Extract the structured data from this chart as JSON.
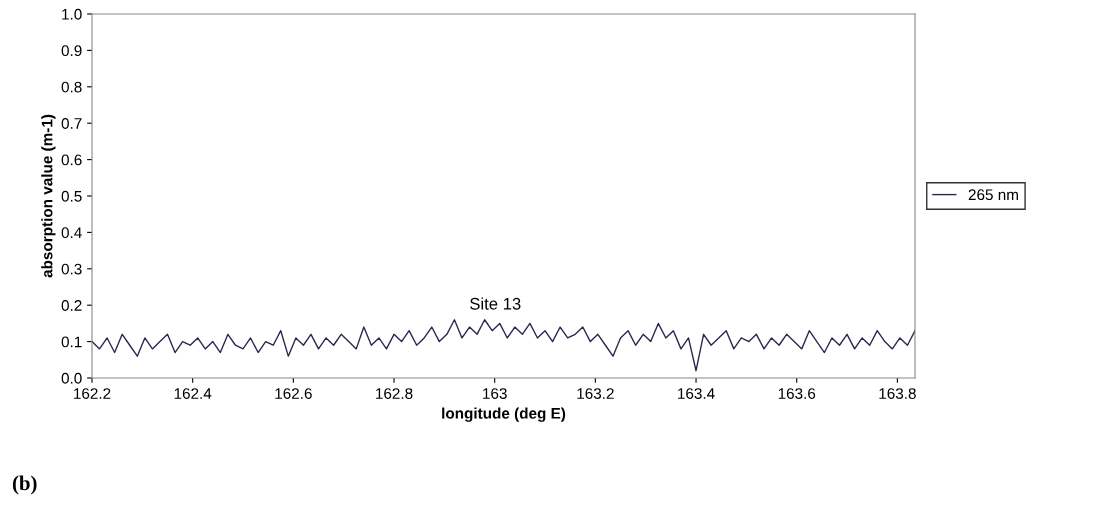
{
  "chart_data": {
    "type": "line",
    "xlabel": "longitude (deg E)",
    "ylabel": "absorption value (m-1)",
    "x": [
      162.2,
      162.215,
      162.23,
      162.245,
      162.26,
      162.275,
      162.29,
      162.305,
      162.32,
      162.335,
      162.35,
      162.365,
      162.38,
      162.395,
      162.41,
      162.425,
      162.44,
      162.455,
      162.47,
      162.485,
      162.5,
      162.515,
      162.53,
      162.545,
      162.56,
      162.575,
      162.59,
      162.605,
      162.62,
      162.635,
      162.65,
      162.665,
      162.68,
      162.695,
      162.71,
      162.725,
      162.74,
      162.755,
      162.77,
      162.785,
      162.8,
      162.815,
      162.83,
      162.845,
      162.86,
      162.875,
      162.89,
      162.905,
      162.92,
      162.935,
      162.95,
      162.965,
      162.98,
      162.995,
      163.01,
      163.025,
      163.04,
      163.055,
      163.07,
      163.085,
      163.1,
      163.115,
      163.13,
      163.145,
      163.16,
      163.175,
      163.19,
      163.205,
      163.22,
      163.235,
      163.25,
      163.265,
      163.28,
      163.295,
      163.31,
      163.325,
      163.34,
      163.355,
      163.37,
      163.385,
      163.4,
      163.415,
      163.43,
      163.445,
      163.46,
      163.475,
      163.49,
      163.505,
      163.52,
      163.535,
      163.55,
      163.565,
      163.58,
      163.595,
      163.61,
      163.625,
      163.64,
      163.655,
      163.67,
      163.685,
      163.7,
      163.715,
      163.73,
      163.745,
      163.76,
      163.775,
      163.79,
      163.805,
      163.82,
      163.835
    ],
    "series": [
      {
        "name": "265 nm",
        "color": "#2a2850",
        "values": [
          0.1,
          0.08,
          0.11,
          0.07,
          0.12,
          0.09,
          0.06,
          0.11,
          0.08,
          0.1,
          0.12,
          0.07,
          0.1,
          0.09,
          0.11,
          0.08,
          0.1,
          0.07,
          0.12,
          0.09,
          0.08,
          0.11,
          0.07,
          0.1,
          0.09,
          0.13,
          0.06,
          0.11,
          0.09,
          0.12,
          0.08,
          0.11,
          0.09,
          0.12,
          0.1,
          0.08,
          0.14,
          0.09,
          0.11,
          0.08,
          0.12,
          0.1,
          0.13,
          0.09,
          0.11,
          0.14,
          0.1,
          0.12,
          0.16,
          0.11,
          0.14,
          0.12,
          0.16,
          0.13,
          0.15,
          0.11,
          0.14,
          0.12,
          0.15,
          0.11,
          0.13,
          0.1,
          0.14,
          0.11,
          0.12,
          0.14,
          0.1,
          0.12,
          0.09,
          0.06,
          0.11,
          0.13,
          0.09,
          0.12,
          0.1,
          0.15,
          0.11,
          0.13,
          0.08,
          0.11,
          0.02,
          0.12,
          0.09,
          0.11,
          0.13,
          0.08,
          0.11,
          0.1,
          0.12,
          0.08,
          0.11,
          0.09,
          0.12,
          0.1,
          0.08,
          0.13,
          0.1,
          0.07,
          0.11,
          0.09,
          0.12,
          0.08,
          0.11,
          0.09,
          0.13,
          0.1,
          0.08,
          0.11,
          0.09,
          0.13
        ]
      }
    ],
    "xlim": [
      162.2,
      163.835
    ],
    "xticks": [
      162.2,
      162.4,
      162.6,
      162.8,
      163,
      163.2,
      163.4,
      163.6,
      163.8
    ],
    "ylim": [
      0,
      1
    ],
    "yticks": [
      {
        "value": 0,
        "label": "0.0"
      },
      0.1,
      0.2,
      0.3,
      0.4,
      0.5,
      0.6,
      0.7,
      0.8,
      0.9,
      {
        "value": 1,
        "label": "1.0"
      }
    ],
    "annotations": [
      "Site 13",
      "(b)"
    ],
    "legend": "right",
    "grid": false,
    "marker": "none",
    "line_style": "solid"
  }
}
